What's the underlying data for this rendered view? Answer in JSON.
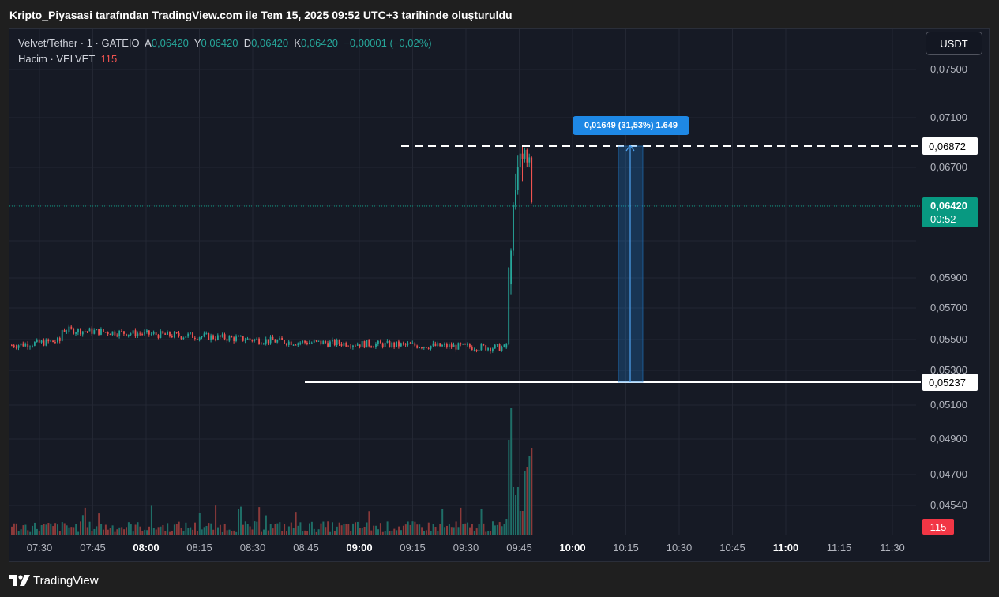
{
  "header": {
    "title": "Kripto_Piyasasi tarafından TradingView.com ile Tem 15, 2025 09:52 UTC+3 tarihinde oluşturuldu"
  },
  "legend": {
    "symbol": "Velvet/Tether · 1 · GATEIO",
    "open_label": "A",
    "open_value": "0,06420",
    "high_label": "Y",
    "high_value": "0,06420",
    "low_label": "D",
    "low_value": "0,06420",
    "close_label": "K",
    "close_value": "0,06420",
    "change": "−0,00001 (−0,02%)",
    "volume_label": "Hacim · VELVET",
    "volume_value": "115"
  },
  "currency_button": "USDT",
  "price_axis": [
    "0,07500",
    "0,07100",
    "0,06700",
    "0,05900",
    "0,05700",
    "0,05500",
    "0,05300",
    "0,05100",
    "0,04900",
    "0,04700",
    "0,04540"
  ],
  "markers": {
    "upper_line_price": "0,06872",
    "lower_line_price": "0,05237",
    "last_price": "0,06420",
    "countdown": "00:52",
    "volume_badge": "115"
  },
  "measure_tool": {
    "label": "0,01649 (31,53%) 1.649"
  },
  "time_axis": [
    {
      "label": "07:30",
      "bold": false
    },
    {
      "label": "07:45",
      "bold": false
    },
    {
      "label": "08:00",
      "bold": true
    },
    {
      "label": "08:15",
      "bold": false
    },
    {
      "label": "08:30",
      "bold": false
    },
    {
      "label": "08:45",
      "bold": false
    },
    {
      "label": "09:00",
      "bold": true
    },
    {
      "label": "09:15",
      "bold": false
    },
    {
      "label": "09:30",
      "bold": false
    },
    {
      "label": "09:45",
      "bold": false
    },
    {
      "label": "10:00",
      "bold": true
    },
    {
      "label": "10:15",
      "bold": false
    },
    {
      "label": "10:30",
      "bold": false
    },
    {
      "label": "10:45",
      "bold": false
    },
    {
      "label": "11:00",
      "bold": true
    },
    {
      "label": "11:15",
      "bold": false
    },
    {
      "label": "11:30",
      "bold": false
    }
  ],
  "footer": {
    "brand": "TradingView"
  },
  "colors": {
    "up": "#26a69a",
    "down": "#ef5350",
    "background": "#161a25",
    "grid": "#232733",
    "measure": "#1e88e5"
  }
}
